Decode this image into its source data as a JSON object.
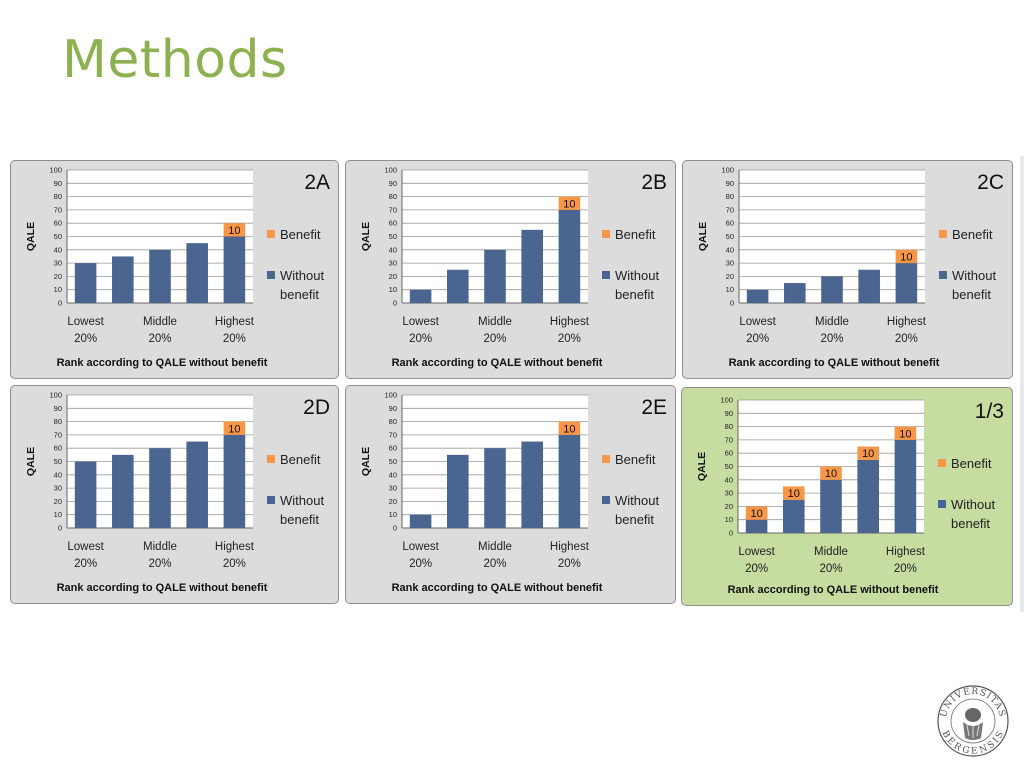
{
  "slide": {
    "title": "Methods"
  },
  "colors": {
    "benefit": "#F79646",
    "without_benefit": "#4A6690",
    "panel_bg": "#DCDCDC",
    "panel_highlight_bg": "#C6DCA0",
    "title_green": "#8DB050"
  },
  "logo": {
    "name": "Universitas Bergensis seal",
    "text": "UNIVERSITAS BERGENSIS"
  },
  "chart_data": [
    {
      "id": "2A",
      "type": "bar",
      "stacked": true,
      "title": "2A",
      "ylabel": "QALE",
      "xlabel": "Rank according  to QALE without benefit",
      "ylim": [
        0,
        100
      ],
      "yticks": [
        0,
        10,
        20,
        30,
        40,
        50,
        60,
        70,
        80,
        90,
        100
      ],
      "categories": [
        "",
        "",
        "",
        "",
        ""
      ],
      "category_labels": [
        [
          "Lowest",
          "20%"
        ],
        [
          "Middle",
          "20%"
        ],
        [
          "Highest",
          "20%"
        ]
      ],
      "series": [
        {
          "name": "Without benefit",
          "values": [
            30,
            35,
            40,
            45,
            50
          ]
        },
        {
          "name": "Benefit",
          "values": [
            0,
            0,
            0,
            0,
            10
          ]
        }
      ],
      "data_labels": [
        "",
        "",
        "",
        "",
        "10"
      ],
      "legend": [
        "Benefit",
        "Without benefit"
      ],
      "legend_position": "right",
      "grid": true
    },
    {
      "id": "2B",
      "type": "bar",
      "stacked": true,
      "title": "2B",
      "ylabel": "QALE",
      "xlabel": "Rank according  to QALE without benefit",
      "ylim": [
        0,
        100
      ],
      "yticks": [
        0,
        10,
        20,
        30,
        40,
        50,
        60,
        70,
        80,
        90,
        100
      ],
      "categories": [
        "",
        "",
        "",
        "",
        ""
      ],
      "category_labels": [
        [
          "Lowest",
          "20%"
        ],
        [
          "Middle",
          "20%"
        ],
        [
          "Highest",
          "20%"
        ]
      ],
      "series": [
        {
          "name": "Without benefit",
          "values": [
            10,
            25,
            40,
            55,
            70
          ]
        },
        {
          "name": "Benefit",
          "values": [
            0,
            0,
            0,
            0,
            10
          ]
        }
      ],
      "data_labels": [
        "",
        "",
        "",
        "",
        "10"
      ],
      "legend": [
        "Benefit",
        "Without benefit"
      ],
      "legend_position": "right",
      "grid": true
    },
    {
      "id": "2C",
      "type": "bar",
      "stacked": true,
      "title": "2C",
      "ylabel": "QALE",
      "xlabel": "Rank according  to QALE without benefit",
      "ylim": [
        0,
        100
      ],
      "yticks": [
        0,
        10,
        20,
        30,
        40,
        50,
        60,
        70,
        80,
        90,
        100
      ],
      "categories": [
        "",
        "",
        "",
        "",
        ""
      ],
      "category_labels": [
        [
          "Lowest",
          "20%"
        ],
        [
          "Middle",
          "20%"
        ],
        [
          "Highest",
          "20%"
        ]
      ],
      "series": [
        {
          "name": "Without benefit",
          "values": [
            10,
            15,
            20,
            25,
            30
          ]
        },
        {
          "name": "Benefit",
          "values": [
            0,
            0,
            0,
            0,
            10
          ]
        }
      ],
      "data_labels": [
        "",
        "",
        "",
        "",
        "10"
      ],
      "legend": [
        "Benefit",
        "Without benefit"
      ],
      "legend_position": "right",
      "grid": true
    },
    {
      "id": "2D",
      "type": "bar",
      "stacked": true,
      "title": "2D",
      "ylabel": "QALE",
      "xlabel": "Rank according  to QALE without benefit",
      "ylim": [
        0,
        100
      ],
      "yticks": [
        0,
        10,
        20,
        30,
        40,
        50,
        60,
        70,
        80,
        90,
        100
      ],
      "categories": [
        "",
        "",
        "",
        "",
        ""
      ],
      "category_labels": [
        [
          "Lowest",
          "20%"
        ],
        [
          "Middle",
          "20%"
        ],
        [
          "Highest",
          "20%"
        ]
      ],
      "series": [
        {
          "name": "Without benefit",
          "values": [
            50,
            55,
            60,
            65,
            70
          ]
        },
        {
          "name": "Benefit",
          "values": [
            0,
            0,
            0,
            0,
            10
          ]
        }
      ],
      "data_labels": [
        "",
        "",
        "",
        "",
        "10"
      ],
      "legend": [
        "Benefit",
        "Without benefit"
      ],
      "legend_position": "right",
      "grid": true
    },
    {
      "id": "2E",
      "type": "bar",
      "stacked": true,
      "title": "2E",
      "ylabel": "QALE",
      "xlabel": "Rank  according  to QALE without benefit",
      "ylim": [
        0,
        100
      ],
      "yticks": [
        0,
        10,
        20,
        30,
        40,
        50,
        60,
        70,
        80,
        90,
        100
      ],
      "categories": [
        "",
        "",
        "",
        "",
        ""
      ],
      "category_labels": [
        [
          "Lowest",
          "20%"
        ],
        [
          "Middle",
          "20%"
        ],
        [
          "Highest",
          "20%"
        ]
      ],
      "series": [
        {
          "name": "Without benefit",
          "values": [
            10,
            55,
            60,
            65,
            70
          ]
        },
        {
          "name": "Benefit",
          "values": [
            0,
            0,
            0,
            0,
            10
          ]
        }
      ],
      "data_labels": [
        "",
        "",
        "",
        "",
        "10"
      ],
      "legend": [
        "Benefit",
        "Without benefit"
      ],
      "legend_position": "right",
      "grid": true
    },
    {
      "id": "1/3",
      "type": "bar",
      "stacked": true,
      "title": "1/3",
      "ylabel": "QALE",
      "xlabel": "Rank according  to QALE without benefit",
      "ylim": [
        0,
        100
      ],
      "yticks": [
        0,
        10,
        20,
        30,
        40,
        50,
        60,
        70,
        80,
        90,
        100
      ],
      "categories": [
        "",
        "",
        "",
        "",
        ""
      ],
      "category_labels": [
        [
          "Lowest",
          "20%"
        ],
        [
          "Middle",
          "20%"
        ],
        [
          "Highest",
          "20%"
        ]
      ],
      "series": [
        {
          "name": "Without benefit",
          "values": [
            10,
            25,
            40,
            55,
            70
          ]
        },
        {
          "name": "Benefit",
          "values": [
            10,
            10,
            10,
            10,
            10
          ]
        }
      ],
      "data_labels": [
        "10",
        "10",
        "10",
        "10",
        "10"
      ],
      "legend": [
        "Benefit",
        "Without benefit"
      ],
      "legend_position": "right",
      "grid": true,
      "highlighted": true
    }
  ]
}
